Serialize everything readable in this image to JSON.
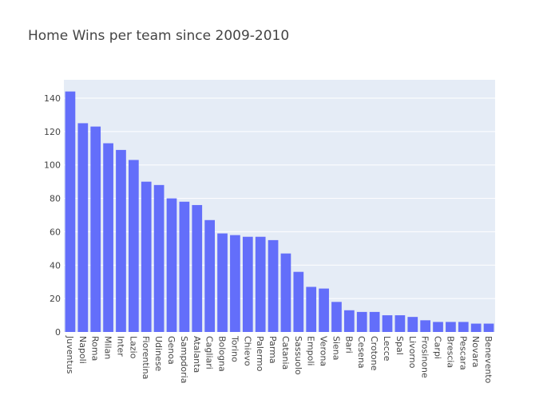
{
  "chart_data": {
    "type": "bar",
    "title": "Home Wins per team since 2009-2010",
    "xlabel": "",
    "ylabel": "",
    "ylim": [
      0,
      151
    ],
    "yticks": [
      0,
      20,
      40,
      60,
      80,
      100,
      120,
      140
    ],
    "grid": true,
    "colors": {
      "bar": "#636efa",
      "plot_bg": "#e5ecf6",
      "grid": "#ffffff",
      "text": "#444444"
    },
    "categories": [
      "Juventus",
      "Napoli",
      "Roma",
      "Milan",
      "Inter",
      "Lazio",
      "Fiorentina",
      "Udinese",
      "Genoa",
      "Sampdoria",
      "Atalanta",
      "Cagliari",
      "Bologna",
      "Torino",
      "Chievo",
      "Palermo",
      "Parma",
      "Catania",
      "Sassuolo",
      "Empoli",
      "Verona",
      "Siena",
      "Bari",
      "Cesena",
      "Crotone",
      "Lecce",
      "Spal",
      "Livorno",
      "Frosinone",
      "Carpi",
      "Brescia",
      "Pescara",
      "Novara",
      "Benevento"
    ],
    "values": [
      144,
      125,
      123,
      113,
      109,
      103,
      90,
      88,
      80,
      78,
      76,
      67,
      59,
      58,
      57,
      57,
      55,
      47,
      36,
      27,
      26,
      18,
      13,
      12,
      12,
      10,
      10,
      9,
      7,
      6,
      6,
      6,
      5,
      5
    ]
  }
}
